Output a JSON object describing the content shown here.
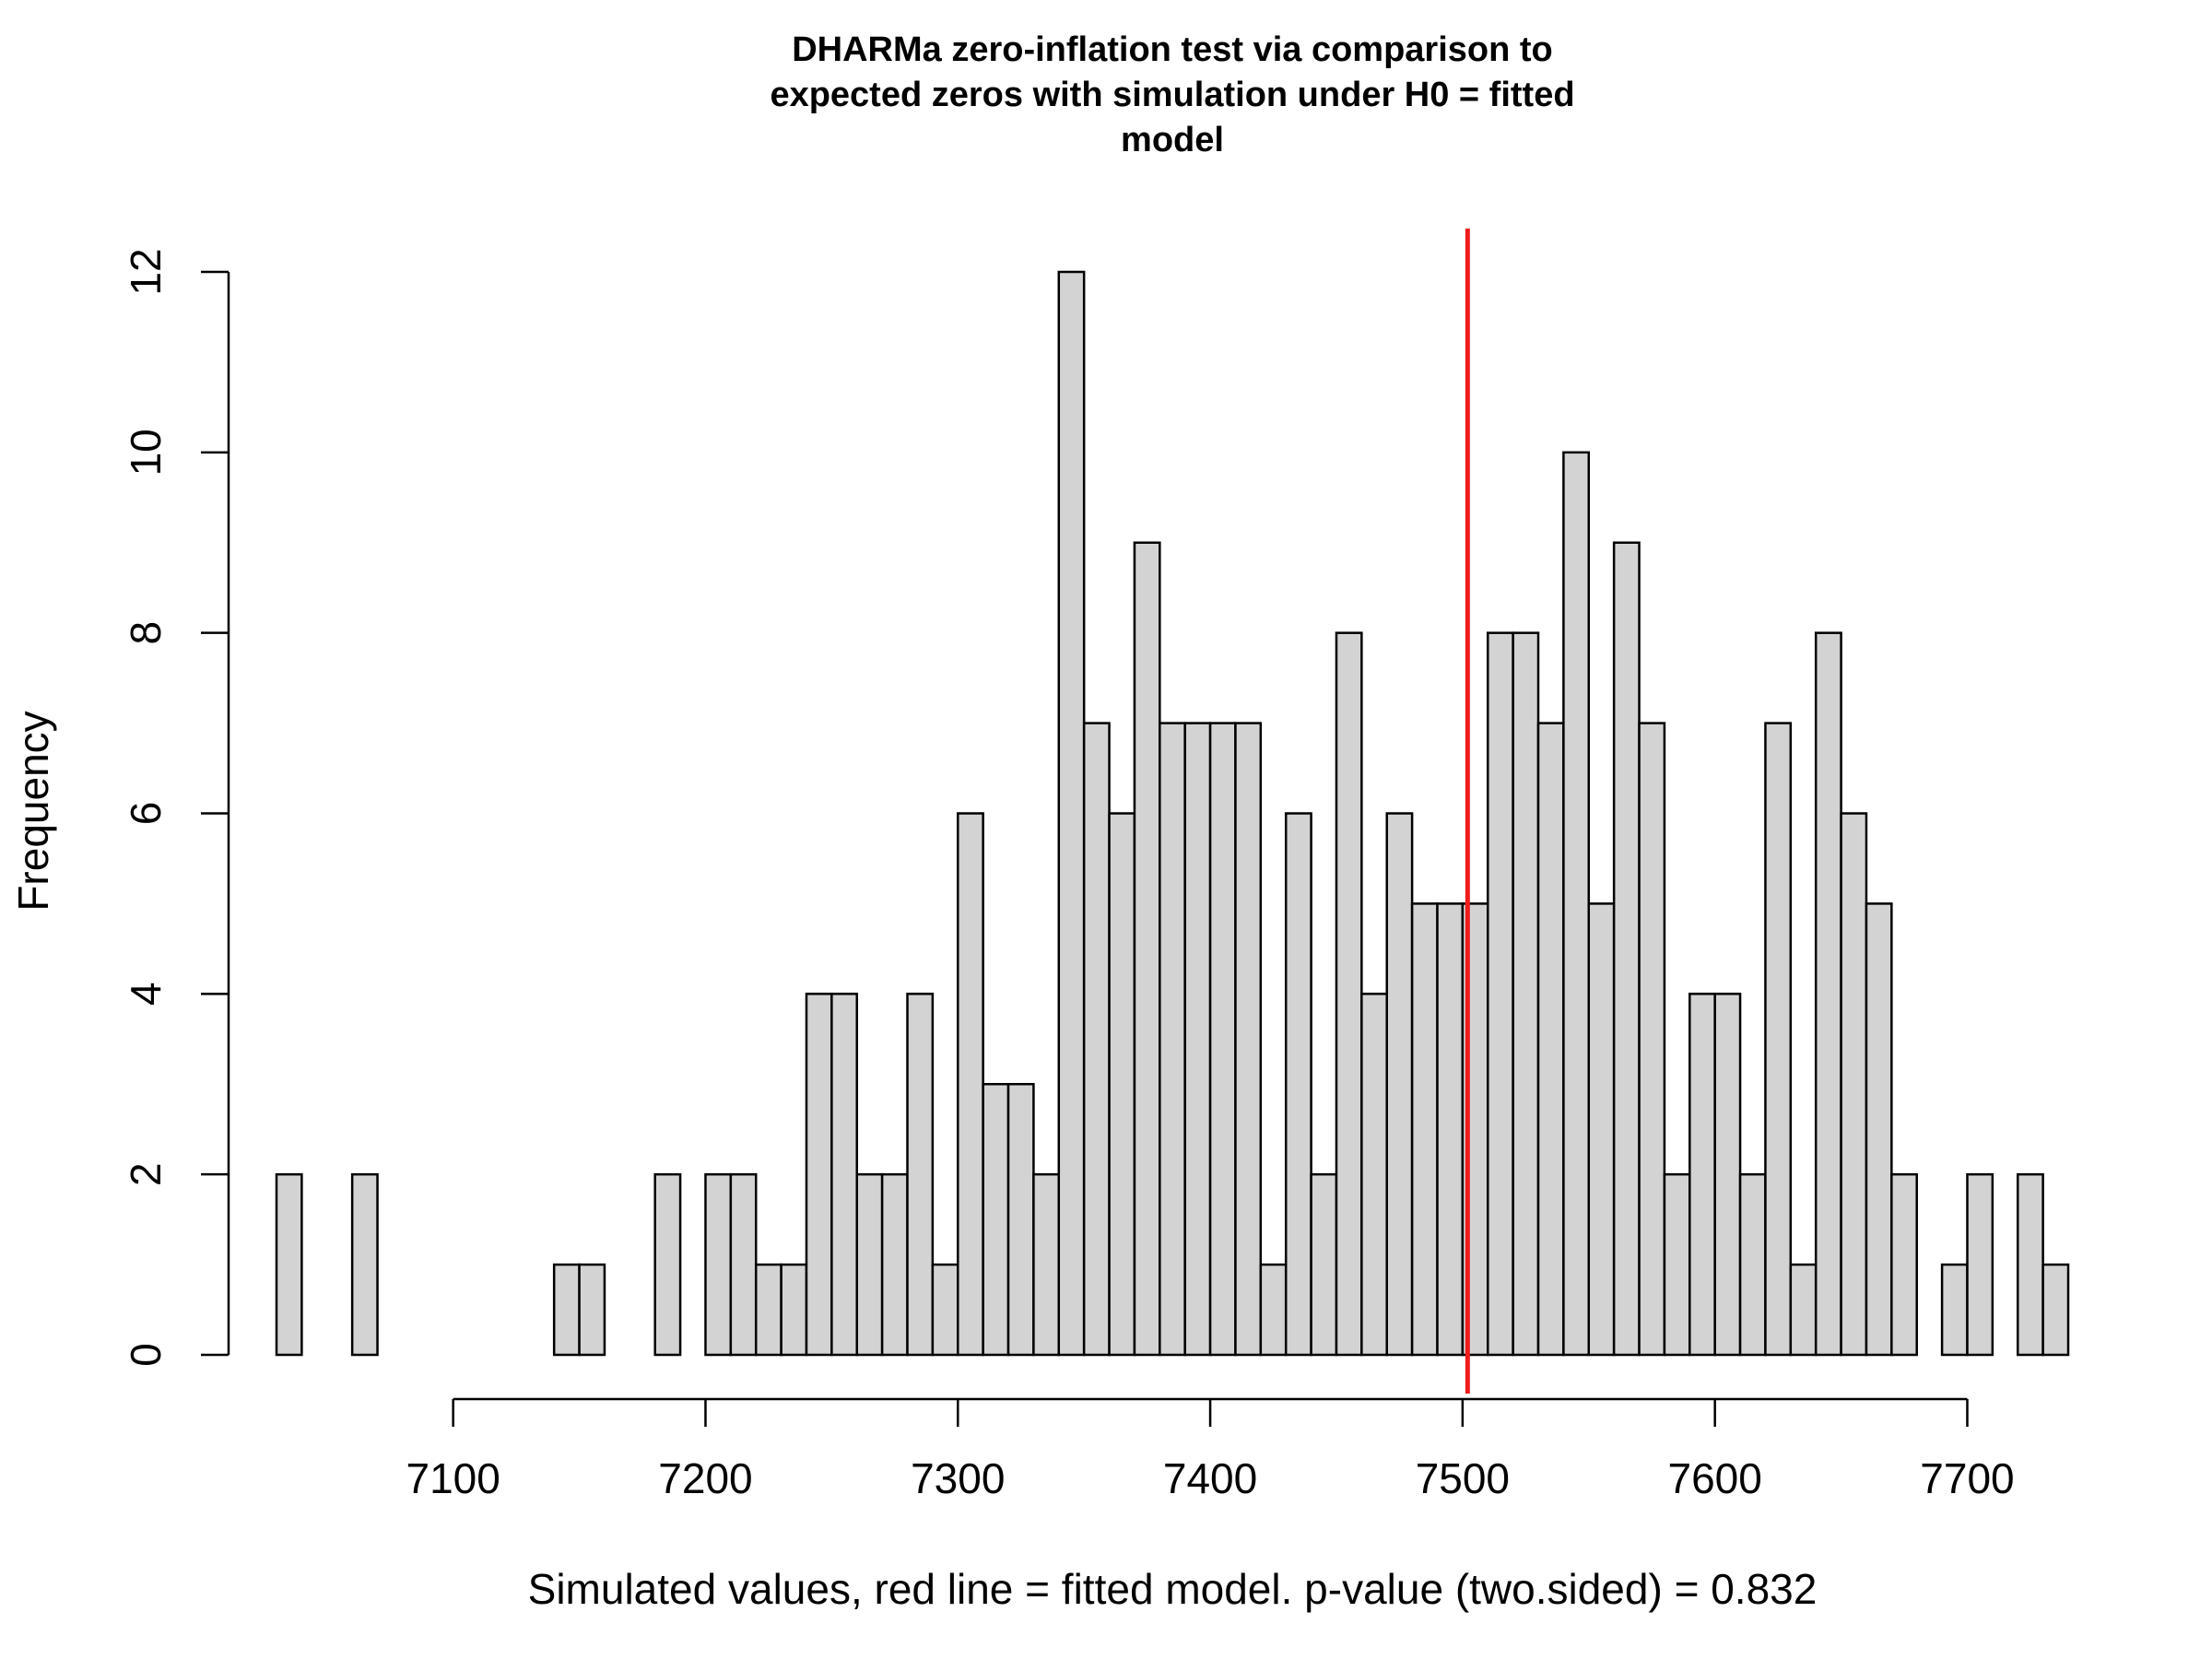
{
  "chart_data": {
    "type": "bar",
    "title_lines": [
      "DHARMa zero-inflation test via comparison to",
      "expected zeros with simulation under H0 = fitted",
      "model"
    ],
    "xlabel": "Simulated values, red line = fitted model. p-value (two.sided) = 0.832",
    "ylabel": "Frequency",
    "bin_width": 10,
    "bins_start": [
      7030,
      7040,
      7050,
      7060,
      7070,
      7080,
      7090,
      7100,
      7110,
      7120,
      7130,
      7140,
      7150,
      7160,
      7170,
      7180,
      7190,
      7200,
      7210,
      7220,
      7230,
      7240,
      7250,
      7260,
      7270,
      7280,
      7290,
      7300,
      7310,
      7320,
      7330,
      7340,
      7350,
      7360,
      7370,
      7380,
      7390,
      7400,
      7410,
      7420,
      7430,
      7440,
      7450,
      7460,
      7470,
      7480,
      7490,
      7500,
      7510,
      7520,
      7530,
      7540,
      7550,
      7560,
      7570,
      7580,
      7590,
      7600,
      7610,
      7620,
      7630,
      7640,
      7650,
      7660,
      7670,
      7680,
      7690,
      7700,
      7710,
      7720,
      7730
    ],
    "counts": [
      2,
      0,
      0,
      2,
      0,
      0,
      0,
      0,
      0,
      0,
      0,
      1,
      1,
      0,
      0,
      2,
      0,
      2,
      2,
      1,
      1,
      4,
      4,
      2,
      2,
      4,
      1,
      6,
      3,
      3,
      2,
      12,
      7,
      6,
      9,
      7,
      7,
      7,
      7,
      1,
      6,
      2,
      8,
      4,
      6,
      5,
      5,
      5,
      8,
      8,
      7,
      10,
      5,
      9,
      7,
      2,
      4,
      4,
      2,
      7,
      1,
      8,
      6,
      5,
      2,
      0,
      1,
      2,
      0,
      2,
      1
    ],
    "xlim": [
      7030,
      7740
    ],
    "ylim": [
      0,
      12
    ],
    "x_ticks": [
      7100,
      7200,
      7300,
      7400,
      7500,
      7600,
      7700
    ],
    "y_ticks": [
      0,
      2,
      4,
      6,
      8,
      10,
      12
    ],
    "observed_value": 7502,
    "observed_line_color": "#ee1c1c",
    "bar_fill": "#d3d3d3",
    "grid": false
  }
}
